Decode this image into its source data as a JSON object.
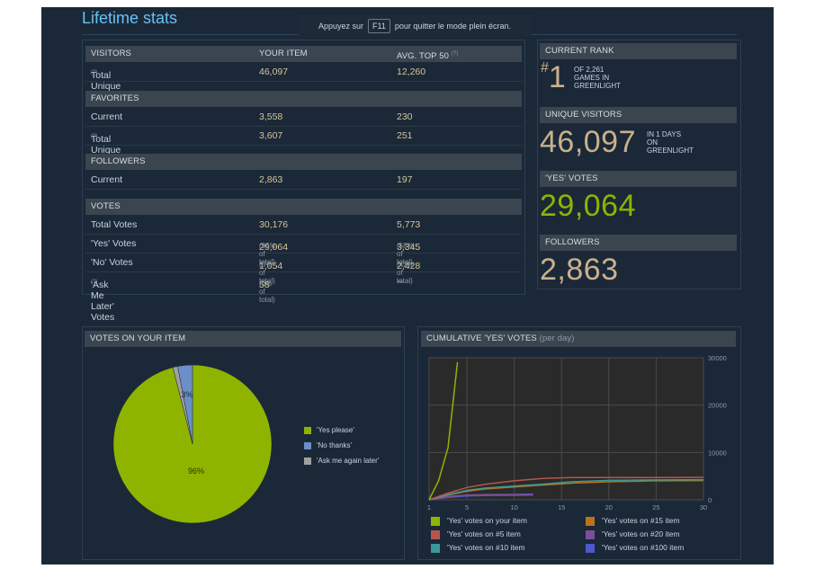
{
  "title": "Lifetime stats",
  "fullscreen_notice": {
    "before": "Appuyez sur",
    "key": "F11",
    "after": "pour quitter le mode plein écran."
  },
  "stats": {
    "col_item": "YOUR ITEM",
    "col_avg": "AVG. TOP 50",
    "col_avg_hint": "(?)",
    "hint": "(?)",
    "visitors": {
      "header": "VISITORS",
      "total_unique": {
        "label": "Total Unique",
        "item": "46,097",
        "avg": "12,260"
      }
    },
    "favorites": {
      "header": "FAVORITES",
      "current": {
        "label": "Current",
        "item": "3,558",
        "avg": "230"
      },
      "total_unique": {
        "label": "Total Unique",
        "item": "3,607",
        "avg": "251"
      }
    },
    "followers": {
      "header": "FOLLOWERS",
      "current": {
        "label": "Current",
        "item": "2,863",
        "avg": "197"
      }
    },
    "votes": {
      "header": "VOTES",
      "total": {
        "label": "Total Votes",
        "item": "30,176",
        "avg": "5,773"
      },
      "yes": {
        "label": "'Yes' Votes",
        "item": "29,064",
        "item_pct": "(96% of total)",
        "avg": "3,345",
        "avg_pct": "(58% of total)"
      },
      "no": {
        "label": "'No' Votes",
        "item": "1,054",
        "item_pct": "(3% of total)",
        "avg": "2,428",
        "avg_pct": "(42% of total)"
      },
      "later": {
        "label": "'Ask Me Later' Votes",
        "item": "58",
        "item_pct": "(0% of total)",
        "avg": "--"
      }
    }
  },
  "summary": {
    "rank": {
      "header": "CURRENT RANK",
      "hash": "#",
      "value": "1",
      "l1": "OF 2,261",
      "l2": "GAMES IN",
      "l3": "GREENLIGHT"
    },
    "visitors": {
      "header": "UNIQUE VISITORS",
      "value": "46,097",
      "l1": "IN 1 DAYS",
      "l2": "ON",
      "l3": "GREENLIGHT"
    },
    "yes": {
      "header": "'YES' VOTES",
      "value": "29,064"
    },
    "followers": {
      "header": "FOLLOWERS",
      "value": "2,863"
    }
  },
  "pie": {
    "header": "VOTES ON YOUR ITEM",
    "slices": [
      {
        "label": "'Yes please'",
        "value": 96,
        "color": "#8fb400"
      },
      {
        "label": "'No thanks'",
        "value": 3,
        "color": "#6b8fc6"
      },
      {
        "label": "'Ask me again later'",
        "value": 1,
        "color": "#a0a0a0"
      }
    ],
    "slice_labels": [
      "96%",
      "3%"
    ]
  },
  "line": {
    "header": "CUMULATIVE 'YES' VOTES",
    "header_sub": "(per day)"
  },
  "chart_data": {
    "type": "line",
    "x_ticks": [
      "1",
      "5",
      "10",
      "15",
      "20",
      "25",
      "30"
    ],
    "y_ticks": [
      "0",
      "10000",
      "20000",
      "30000"
    ],
    "xlim": [
      1,
      30
    ],
    "ylim": [
      0,
      30000
    ],
    "series": [
      {
        "name": "'Yes' votes on your item",
        "color": "#8fb400",
        "x": [
          1,
          2,
          3,
          4
        ],
        "y": [
          0,
          4000,
          11000,
          29064
        ]
      },
      {
        "name": "'Yes' votes on #5 item",
        "color": "#b5564d",
        "x": [
          1,
          3,
          5,
          7,
          10,
          13,
          16,
          20,
          25,
          30
        ],
        "y": [
          0,
          1400,
          2600,
          3300,
          4000,
          4500,
          4700,
          4700,
          4700,
          4750
        ]
      },
      {
        "name": "'Yes' votes on #10 item",
        "color": "#3a9896",
        "x": [
          1,
          3,
          5,
          7,
          10,
          13,
          16,
          20,
          25,
          30
        ],
        "y": [
          0,
          1100,
          2000,
          2500,
          2900,
          3300,
          3800,
          4100,
          4200,
          4250
        ]
      },
      {
        "name": "'Yes' votes on #15 item",
        "color": "#b8741a",
        "x": [
          1,
          3,
          5,
          7,
          10,
          13,
          16,
          20,
          25,
          30
        ],
        "y": [
          0,
          1000,
          1800,
          2300,
          2700,
          3100,
          3500,
          3800,
          4000,
          4050
        ]
      },
      {
        "name": "'Yes' votes on #20 item",
        "color": "#7b4e9a",
        "x": [
          1,
          3,
          5,
          7,
          10,
          12
        ],
        "y": [
          0,
          700,
          1000,
          1100,
          1150,
          1200
        ]
      },
      {
        "name": "'Yes' votes on #100 item",
        "color": "#4f57c9",
        "x": [
          1,
          3,
          5,
          7,
          10,
          12
        ],
        "y": [
          0,
          500,
          800,
          900,
          950,
          1000
        ]
      }
    ]
  }
}
